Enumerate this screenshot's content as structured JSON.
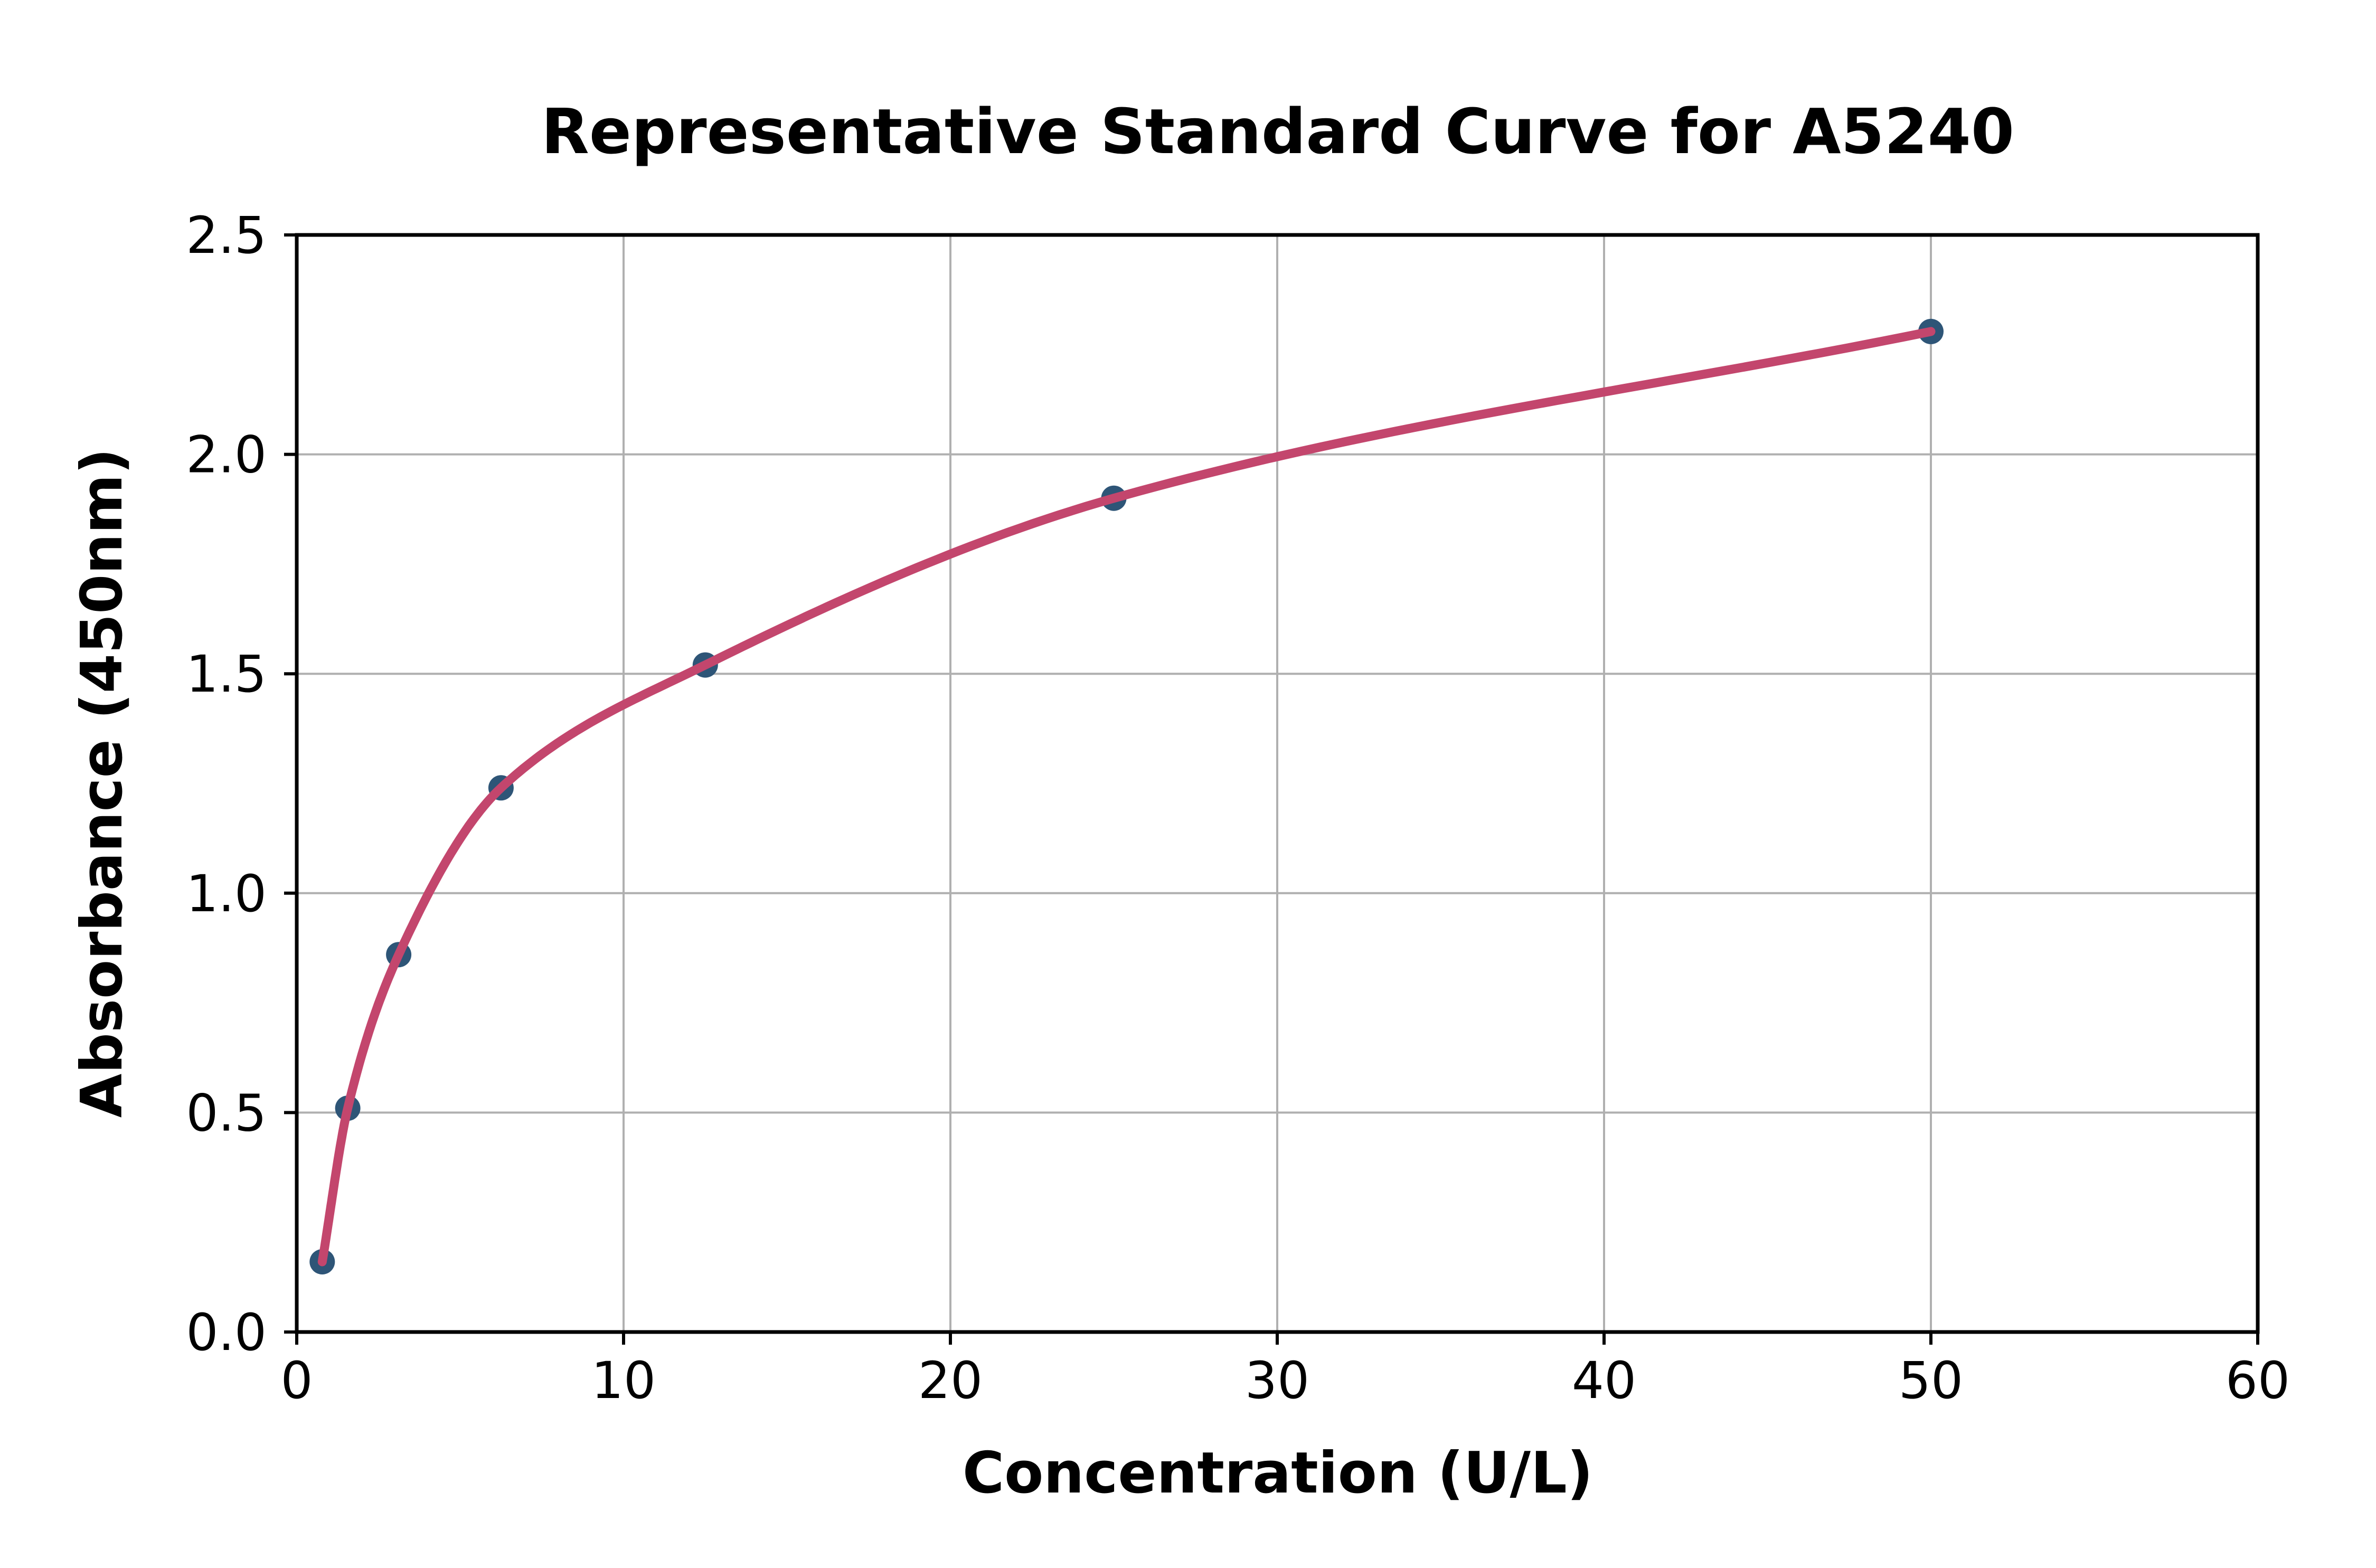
{
  "chart_data": {
    "type": "scatter",
    "title": "Representative Standard Curve for A5240",
    "xlabel": "Concentration (U/L)",
    "ylabel": "Absorbance (450nm)",
    "xlim": [
      0,
      60
    ],
    "ylim": [
      0,
      2.5
    ],
    "x_ticks": {
      "values": [
        0,
        10,
        20,
        30,
        40,
        50,
        60
      ],
      "labels": [
        "0",
        "10",
        "20",
        "30",
        "40",
        "50",
        "60"
      ]
    },
    "y_ticks": {
      "values": [
        0,
        0.5,
        1.0,
        1.5,
        2.0,
        2.5
      ],
      "labels": [
        "0.0",
        "0.5",
        "1.0",
        "1.5",
        "2.0",
        "2.5"
      ]
    },
    "grid": true,
    "legend_position": "none",
    "series": [
      {
        "name": "standard-points",
        "type": "scatter",
        "color": "#2E5577",
        "points": [
          {
            "x": 0.78,
            "y": 0.16
          },
          {
            "x": 1.56,
            "y": 0.51
          },
          {
            "x": 3.12,
            "y": 0.86
          },
          {
            "x": 6.25,
            "y": 1.24
          },
          {
            "x": 12.5,
            "y": 1.52
          },
          {
            "x": 25,
            "y": 1.9
          },
          {
            "x": 50,
            "y": 2.28
          }
        ]
      },
      {
        "name": "fit-curve",
        "type": "line",
        "color": "#C3466D",
        "x_range": [
          0.78,
          50
        ],
        "through": "standard-points"
      }
    ],
    "colors": {
      "grid": "#B0B0B0",
      "axis": "#000000",
      "background": "#FFFFFF"
    }
  }
}
